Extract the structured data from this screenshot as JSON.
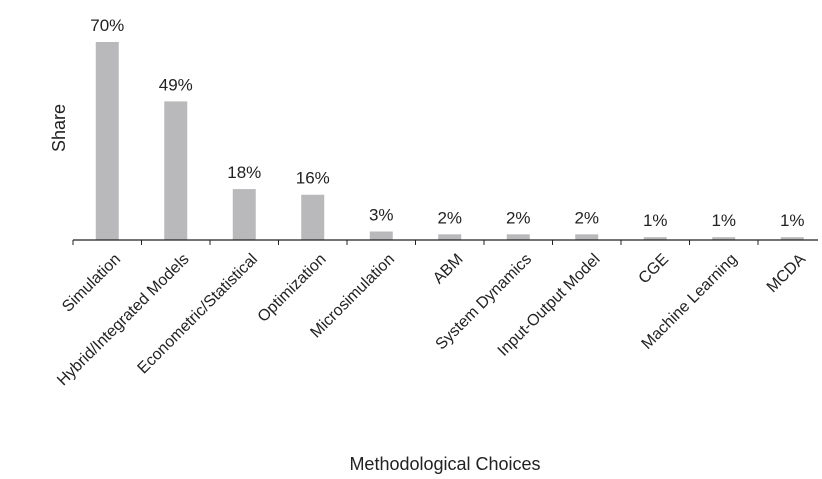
{
  "chart_data": {
    "type": "bar",
    "xlabel": "Methodological Choices",
    "ylabel": "Share",
    "ylim": [
      0,
      70
    ],
    "grid": false,
    "legend": "none",
    "bar_color": "#b9b9bb",
    "axis_color": "#222222",
    "value_suffix": "%",
    "categories": [
      "Simulation",
      "Hybrid/Integrated Models",
      "Econometric/Statistical",
      "Optimization",
      "Microsimulation",
      "ABM",
      "System Dynamics",
      "Input-Output Model",
      "CGE",
      "Machine Learning",
      "MCDA"
    ],
    "values": [
      70,
      49,
      18,
      16,
      3,
      2,
      2,
      2,
      1,
      1,
      1
    ],
    "value_labels": [
      "70%",
      "49%",
      "18%",
      "16%",
      "3%",
      "2%",
      "2%",
      "2%",
      "1%",
      "1%",
      "1%"
    ]
  }
}
